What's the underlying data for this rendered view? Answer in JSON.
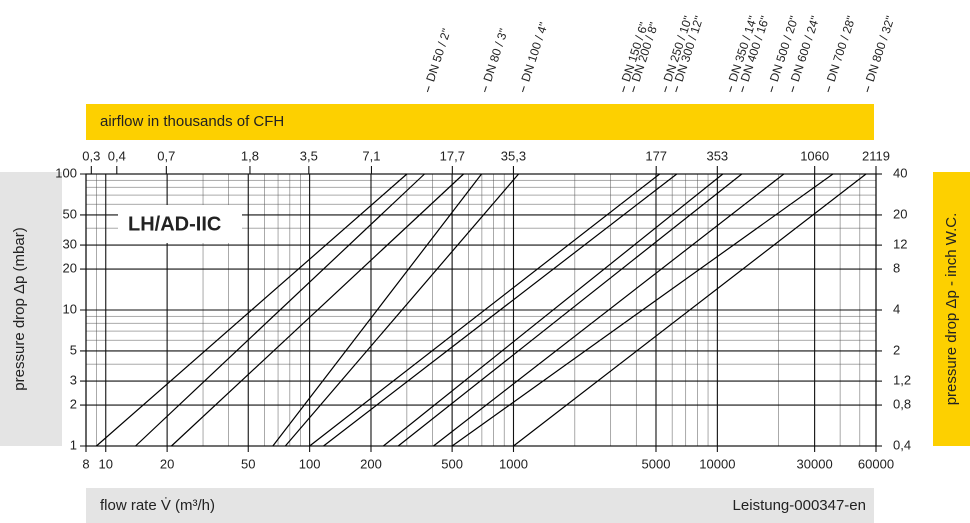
{
  "chart_data": {
    "type": "line",
    "title": "LH/AD-IIC",
    "x_label": "flow rate V̇ (m³/h)",
    "y_label": "pressure drop Δp (mbar)",
    "y2_label": "pressure  drop Δp - inch W.C.",
    "x2_label": "airflow in thousands of CFH",
    "footer": "Leistung-000347-en",
    "log_x": true,
    "log_y": true,
    "grid": true,
    "xlim": [
      8,
      60000
    ],
    "xticks": [
      8,
      10,
      20,
      50,
      100,
      200,
      500,
      1000,
      5000,
      10000,
      30000,
      60000
    ],
    "ylim": [
      1,
      100
    ],
    "yticks": [
      1,
      2,
      3,
      5,
      10,
      20,
      30,
      50,
      100
    ],
    "y2lim": [
      0.4,
      40
    ],
    "y2ticks": [
      {
        "value": 0.4,
        "label": "0,4"
      },
      {
        "value": 0.8,
        "label": "0,8"
      },
      {
        "value": 1.2,
        "label": "1,2"
      },
      2,
      4,
      8,
      12,
      20,
      40
    ],
    "x2lim": [
      0.2825,
      2119
    ],
    "x2ticks": [
      {
        "value": 0.3,
        "label": "0,3"
      },
      {
        "value": 0.4,
        "label": "0,4"
      },
      {
        "value": 0.7,
        "label": "0,7"
      },
      {
        "value": 1.8,
        "label": "1,8"
      },
      {
        "value": 3.5,
        "label": "3,5"
      },
      {
        "value": 7.1,
        "label": "7,1"
      },
      {
        "value": 17.7,
        "label": "17,7"
      },
      {
        "value": 35.3,
        "label": "35,3"
      },
      177,
      353,
      1060,
      2119
    ],
    "nominal_sizes": [
      {
        "label": "DN 50 / 2\"",
        "x": 378
      },
      {
        "label": "DN 80 / 3\"",
        "x": 721
      },
      {
        "label": "DN 100 / 4\"",
        "x": 1107
      },
      {
        "label": "DN 150 / 6\"",
        "x": 3436
      },
      {
        "label": "DN 200 / 8\"",
        "x": 3847
      },
      {
        "label": "DN 250 / 10\"",
        "x": 5521
      },
      {
        "label": "DN 300 / 12\"",
        "x": 6252
      },
      {
        "label": "DN 350 / 14\"",
        "x": 11510
      },
      {
        "label": "DN 400 / 16\"",
        "x": 13180
      },
      {
        "label": "DN 500 / 20\"",
        "x": 18320
      },
      {
        "label": "DN 600 / 24\"",
        "x": 23230
      },
      {
        "label": "DN 700 / 28\"",
        "x": 34860
      },
      {
        "label": "DN 800 / 32\"",
        "x": 54200
      }
    ],
    "color": "#000000",
    "series": [
      {
        "x": [
          9,
          300
        ],
        "values": [
          1,
          100
        ]
      },
      {
        "x": [
          14,
          366
        ],
        "values": [
          1,
          100
        ]
      },
      {
        "x": [
          21,
          569
        ],
        "values": [
          1,
          100
        ]
      },
      {
        "x": [
          66,
          697
        ],
        "values": [
          1,
          100
        ]
      },
      {
        "x": [
          76,
          1059
        ],
        "values": [
          1,
          100
        ]
      },
      {
        "x": [
          100,
          5212
        ],
        "values": [
          1,
          100
        ]
      },
      {
        "x": [
          117,
          6324
        ],
        "values": [
          1,
          100
        ]
      },
      {
        "x": [
          230,
          10640
        ],
        "values": [
          1,
          100
        ]
      },
      {
        "x": [
          272,
          13180
        ],
        "values": [
          1,
          100
        ]
      },
      {
        "x": [
          405,
          21180
        ],
        "values": [
          1,
          100
        ]
      },
      {
        "x": [
          500,
          36900
        ],
        "values": [
          1,
          100
        ]
      },
      {
        "x": [
          1000,
          53600
        ],
        "values": [
          1,
          100
        ]
      }
    ]
  }
}
